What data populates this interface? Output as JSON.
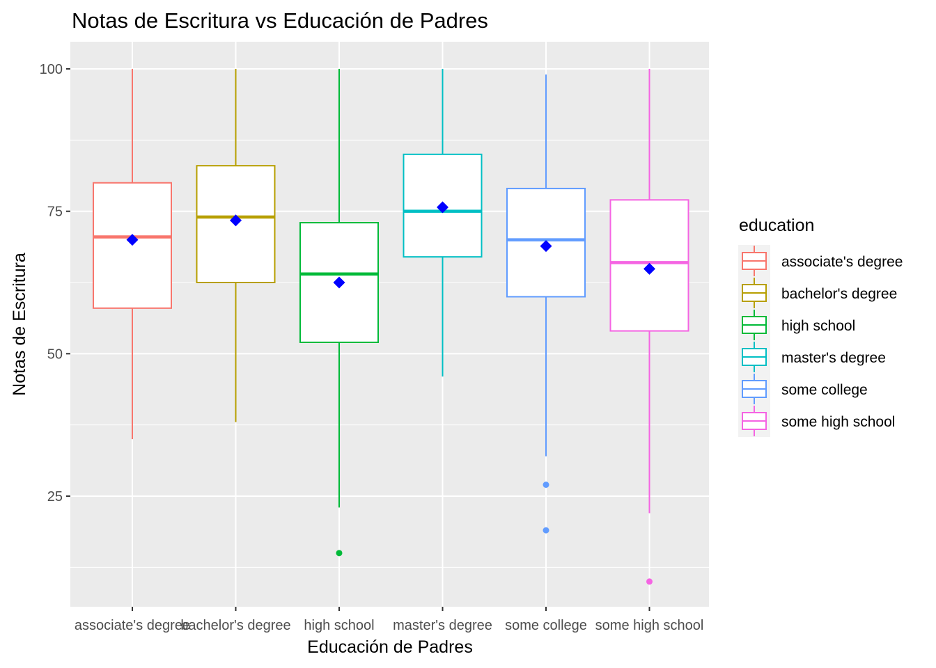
{
  "chart_data": {
    "type": "boxplot",
    "title": "Notas de Escritura vs Educación de Padres",
    "xlabel": "Educación de Padres",
    "ylabel": "Notas de Escritura",
    "ylim": [
      5,
      105
    ],
    "yticks": [
      25,
      50,
      75,
      100
    ],
    "grid": true,
    "legend": {
      "title": "education",
      "position": "right"
    },
    "categories": [
      "associate's degree",
      "bachelor's degree",
      "high school",
      "master's degree",
      "some college",
      "some high school"
    ],
    "colors": [
      "#F8766D",
      "#B79F00",
      "#00BA38",
      "#00BFC4",
      "#619CFF",
      "#F564E3"
    ],
    "mean_color": "#0000FF",
    "boxes": [
      {
        "category": "associate's degree",
        "whisker_low": 35,
        "q1": 58,
        "median": 70.5,
        "q3": 80,
        "whisker_high": 100,
        "mean": 70,
        "outliers": []
      },
      {
        "category": "bachelor's degree",
        "whisker_low": 38,
        "q1": 62.5,
        "median": 74,
        "q3": 83,
        "whisker_high": 100,
        "mean": 73.4,
        "outliers": []
      },
      {
        "category": "high school",
        "whisker_low": 23,
        "q1": 52,
        "median": 64,
        "q3": 73,
        "whisker_high": 100,
        "mean": 62.5,
        "outliers": [
          15
        ]
      },
      {
        "category": "master's degree",
        "whisker_low": 46,
        "q1": 67,
        "median": 75,
        "q3": 85,
        "whisker_high": 100,
        "mean": 75.7,
        "outliers": []
      },
      {
        "category": "some college",
        "whisker_low": 32,
        "q1": 60,
        "median": 70,
        "q3": 79,
        "whisker_high": 99,
        "mean": 68.9,
        "outliers": [
          27,
          19
        ]
      },
      {
        "category": "some high school",
        "whisker_low": 22,
        "q1": 54,
        "median": 66,
        "q3": 77,
        "whisker_high": 100,
        "mean": 64.9,
        "outliers": [
          10
        ]
      }
    ]
  }
}
